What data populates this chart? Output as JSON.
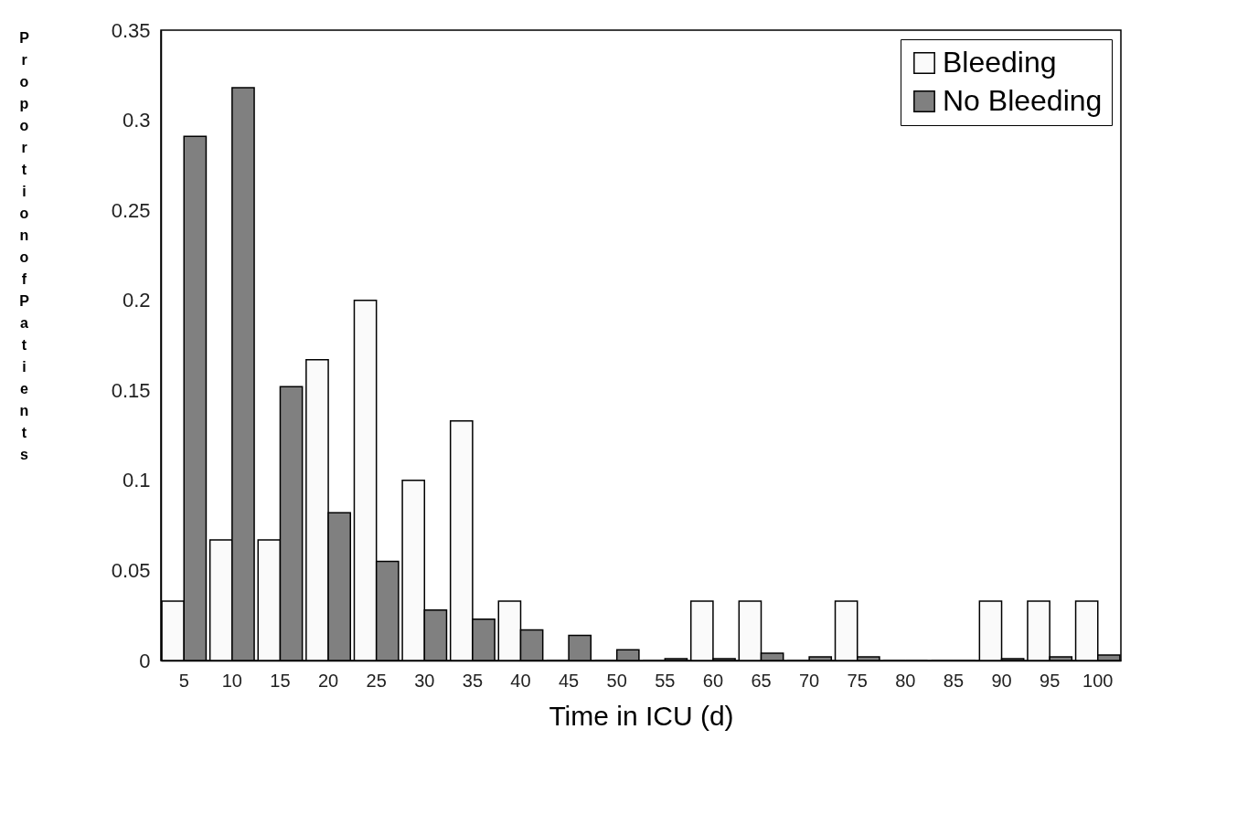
{
  "chart_data": {
    "type": "bar",
    "xlabel": "Time in ICU (d)",
    "ylabel": "Proportion of Patients",
    "categories": [
      "5",
      "10",
      "15",
      "20",
      "25",
      "30",
      "35",
      "40",
      "45",
      "50",
      "55",
      "60",
      "65",
      "70",
      "75",
      "80",
      "85",
      "90",
      "95",
      "100"
    ],
    "series": [
      {
        "name": "Bleeding",
        "color": "#fafafa",
        "values": [
          0.033,
          0.067,
          0.067,
          0.167,
          0.2,
          0.1,
          0.133,
          0.033,
          0,
          0,
          0,
          0.033,
          0.033,
          0,
          0.033,
          0,
          0,
          0.033,
          0.033,
          0.033
        ]
      },
      {
        "name": "No Bleeding",
        "color": "#808080",
        "values": [
          0.291,
          0.318,
          0.152,
          0.082,
          0.055,
          0.028,
          0.023,
          0.017,
          0.014,
          0.006,
          0.001,
          0.001,
          0.004,
          0.002,
          0.002,
          0,
          0,
          0.001,
          0.002,
          0.003
        ]
      }
    ],
    "ylim": [
      0,
      0.35
    ],
    "yticks": [
      0,
      0.05,
      0.1,
      0.15,
      0.2,
      0.25,
      0.3,
      0.35
    ],
    "grid": false,
    "legend": "top right"
  }
}
